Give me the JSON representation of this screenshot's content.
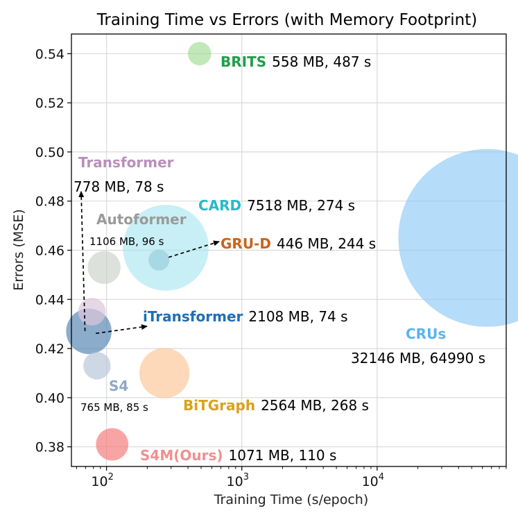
{
  "chart_data": {
    "type": "scatter",
    "title": "Training Time vs Errors (with Memory Footprint)",
    "xlabel": "Training Time (s/epoch)",
    "ylabel": "Errors (MSE)",
    "xscale": "log",
    "xlim": [
      55,
      90000
    ],
    "ylim": [
      0.372,
      0.548
    ],
    "xticks": [
      {
        "value": 100,
        "label": "10",
        "exp": "2"
      },
      {
        "value": 1000,
        "label": "10",
        "exp": "3"
      },
      {
        "value": 10000,
        "label": "10",
        "exp": "4"
      }
    ],
    "yticks": [
      0.38,
      0.4,
      0.42,
      0.44,
      0.46,
      0.48,
      0.5,
      0.52,
      0.54
    ],
    "ytick_labels": [
      "0.38",
      "0.40",
      "0.42",
      "0.44",
      "0.46",
      "0.48",
      "0.50",
      "0.52",
      "0.54"
    ],
    "grid": true,
    "points": [
      {
        "name": "CRUs",
        "time": 64990,
        "mse": 0.465,
        "memory_mb": 32146,
        "info": "32146 MB, 64990 s",
        "color": "#8ecaf5",
        "alpha": 0.65,
        "name_color": "#5ab4ef"
      },
      {
        "name": "CARD",
        "time": 274,
        "mse": 0.461,
        "memory_mb": 7518,
        "info": "7518 MB, 274 s",
        "color": "#a3e4ee",
        "alpha": 0.6,
        "name_color": "#2bb9c8"
      },
      {
        "name": "BiTGraph",
        "time": 268,
        "mse": 0.41,
        "memory_mb": 2564,
        "info": "2564 MB, 268 s",
        "color": "#fcc08a",
        "alpha": 0.6,
        "name_color": "#d9a21a"
      },
      {
        "name": "iTransformer",
        "time": 74,
        "mse": 0.427,
        "memory_mb": 2108,
        "info": "2108 MB, 74 s",
        "color": "#5b89b6",
        "alpha": 0.7,
        "name_color": "#1f6eb5"
      },
      {
        "name": "Autoformer",
        "time": 96,
        "mse": 0.453,
        "memory_mb": 1106,
        "info": "1106 MB, 96 s",
        "color": "#c4cfc3",
        "alpha": 0.6,
        "name_color": "#9a9a9a"
      },
      {
        "name": "S4M(Ours)",
        "time": 110,
        "mse": 0.381,
        "memory_mb": 1071,
        "info": "1071 MB, 110 s",
        "color": "#f67e7e",
        "alpha": 0.7,
        "name_color": "#f28f8f"
      },
      {
        "name": "Transformer",
        "time": 78,
        "mse": 0.435,
        "memory_mb": 778,
        "info": "778 MB, 78 s",
        "color": "#dcc6dc",
        "alpha": 0.7,
        "name_color": "#b990b9"
      },
      {
        "name": "S4",
        "time": 85,
        "mse": 0.413,
        "memory_mb": 765,
        "info": "765 MB, 85 s",
        "color": "#b8c8d8",
        "alpha": 0.7,
        "name_color": "#8fa8c4"
      },
      {
        "name": "BRITS",
        "time": 487,
        "mse": 0.54,
        "memory_mb": 558,
        "info": "558 MB, 487 s",
        "color": "#9ad88a",
        "alpha": 0.6,
        "name_color": "#1f9e4a"
      },
      {
        "name": "GRU-D",
        "time": 244,
        "mse": 0.456,
        "memory_mb": 446,
        "info": "446 MB, 244 s",
        "color": "#8cc6d6",
        "alpha": 0.55,
        "name_color": "#c8641e"
      }
    ]
  }
}
